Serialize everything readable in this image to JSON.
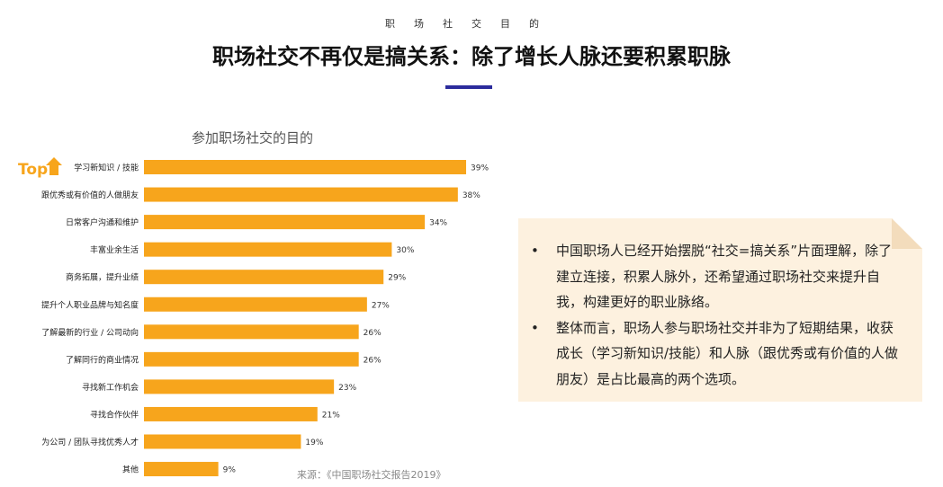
{
  "header": {
    "kicker": "职场社交目的",
    "title": "职场社交不再仅是搞关系：除了增长人脉还要积累职脉"
  },
  "top_label": "Top",
  "chart_data": {
    "type": "bar",
    "orientation": "horizontal",
    "title": "参加职场社交的目的",
    "categories": [
      "学习新知识 / 技能",
      "跟优秀或有价值的人做朋友",
      "日常客户沟通和维护",
      "丰富业余生活",
      "商务拓展，提升业绩",
      "提升个人职业品牌与知名度",
      "了解最新的行业 / 公司动向",
      "了解同行的商业情况",
      "寻找新工作机会",
      "寻找合作伙伴",
      "为公司 / 团队寻找优秀人才",
      "其他"
    ],
    "values": [
      39,
      38,
      34,
      30,
      29,
      27,
      26,
      26,
      23,
      21,
      19,
      9
    ],
    "value_labels": [
      "39%",
      "38%",
      "34%",
      "30%",
      "29%",
      "27%",
      "26%",
      "26%",
      "23%",
      "21%",
      "19%",
      "9%"
    ],
    "color": "#f7a51c"
  },
  "notes": [
    "中国职场人已经开始摆脱“社交=搞关系”片面理解，除了建立连接，积累人脉外，还希望通过职场社交来提升自我，构建更好的职业脉络。",
    "整体而言，职场人参与职场社交并非为了短期结果，收获成长（学习新知识/技能）和人脉（跟优秀或有价值的人做朋友）是占比最高的两个选项。"
  ],
  "source": "来源：《中国职场社交报告2019》"
}
